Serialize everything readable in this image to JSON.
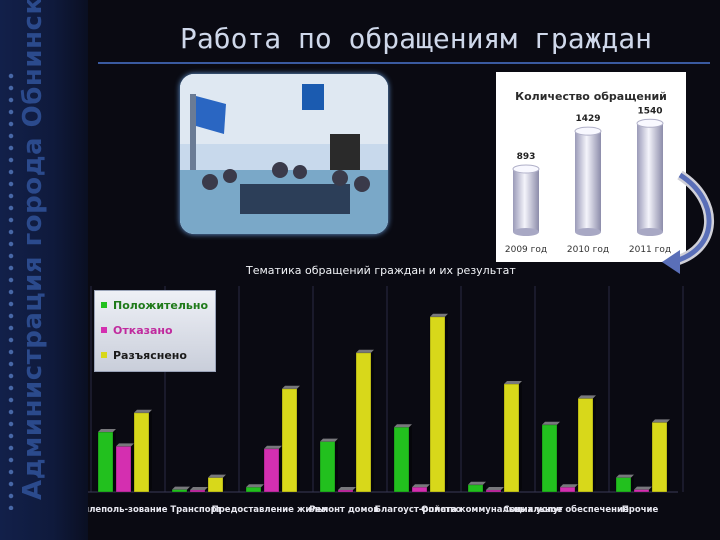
{
  "sidebar": {
    "vertical_title": "Администрация города Обнинска"
  },
  "header": {
    "title": "Работа по обращениям граждан"
  },
  "colors": {
    "green": "#22c01e",
    "magenta": "#d42fb0",
    "yellow": "#d8d81a",
    "silver": "#e8e8f0"
  },
  "chart_data": [
    {
      "type": "bar",
      "title": "Количество обращений",
      "categories": [
        "2009 год",
        "2010 год",
        "2011 год"
      ],
      "values": [
        893,
        1429,
        1540
      ],
      "ylim": [
        0,
        1700
      ]
    },
    {
      "type": "bar",
      "title": "Тематика обращений граждан и их результат",
      "categories": [
        "емлеполь-зование",
        "Транспорт",
        "Предоставление жилья",
        "Ремонт домов",
        "Благоуст-ройство",
        "Оплата коммунальных услуг",
        "Социальное обеспечение",
        "Прочие"
      ],
      "series": [
        {
          "name": "Положительно",
          "values": [
            25,
            1,
            2,
            21,
            27,
            3,
            28,
            6
          ]
        },
        {
          "name": "Отказано",
          "values": [
            19,
            0,
            18,
            0,
            2,
            0,
            2,
            1
          ]
        },
        {
          "name": "Разъяснено",
          "values": [
            33,
            6,
            43,
            58,
            73,
            45,
            39,
            29
          ]
        }
      ],
      "ylim": [
        0,
        80
      ]
    }
  ]
}
